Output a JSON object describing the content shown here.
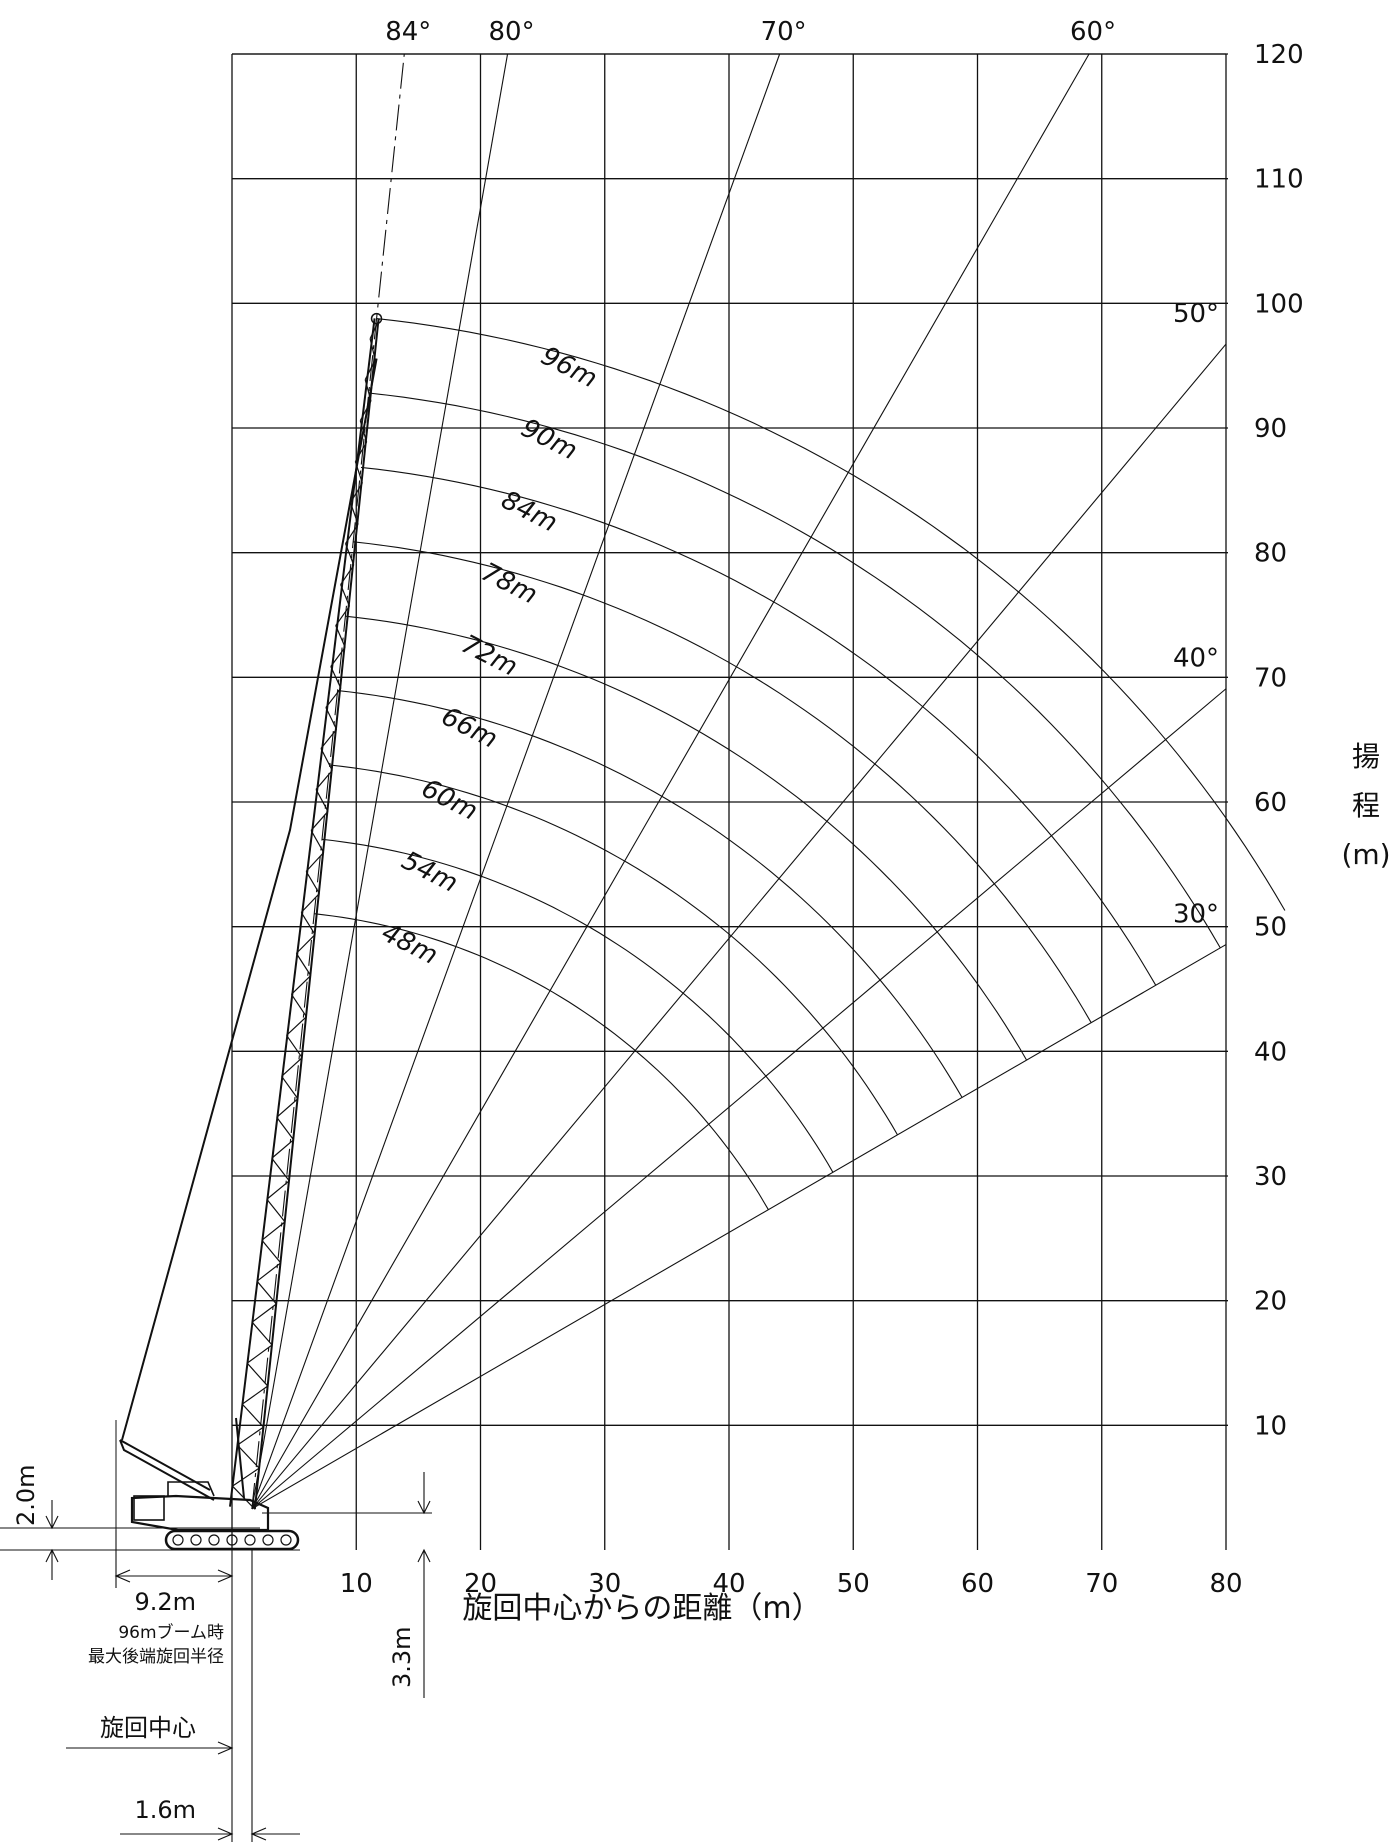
{
  "chart_data": {
    "type": "range-diagram",
    "x_ticks": [
      10,
      20,
      30,
      40,
      50,
      60,
      70,
      80
    ],
    "y_ticks": [
      10,
      20,
      30,
      40,
      50,
      60,
      70,
      80,
      90,
      100,
      110,
      120
    ],
    "xlim": [
      0,
      80
    ],
    "ylim": [
      0,
      120
    ],
    "grid": true,
    "x_axis_label": "旋回中心からの距離（m）",
    "y_axis_label_chars": [
      "揚",
      "程",
      "(m)"
    ],
    "boom_pivot": {
      "x": 1.6,
      "y": 3.3
    },
    "angle_lines": [
      {
        "label": "84°",
        "angle": 84
      },
      {
        "label": "80°",
        "angle": 80
      },
      {
        "label": "70°",
        "angle": 70
      },
      {
        "label": "60°",
        "angle": 60
      },
      {
        "label": "50°",
        "angle": 50
      },
      {
        "label": "40°",
        "angle": 40
      },
      {
        "label": "30°",
        "angle": 30
      }
    ],
    "boom_arcs": [
      {
        "label": "96m",
        "length": 96
      },
      {
        "label": "90m",
        "length": 90
      },
      {
        "label": "84m",
        "length": 84
      },
      {
        "label": "78m",
        "length": 78
      },
      {
        "label": "72m",
        "length": 72
      },
      {
        "label": "66m",
        "length": 66
      },
      {
        "label": "60m",
        "length": 60
      },
      {
        "label": "54m",
        "length": 54
      },
      {
        "label": "48m",
        "length": 48
      }
    ]
  },
  "dimensions": {
    "pivot_height": "2.0m",
    "tail_radius": "9.2m",
    "tail_note_line1": "96mブーム時",
    "tail_note_line2": "最大後端旋回半径",
    "boom_foot_height": "3.3m",
    "center_label": "旋回中心",
    "center_offset": "1.6m"
  }
}
